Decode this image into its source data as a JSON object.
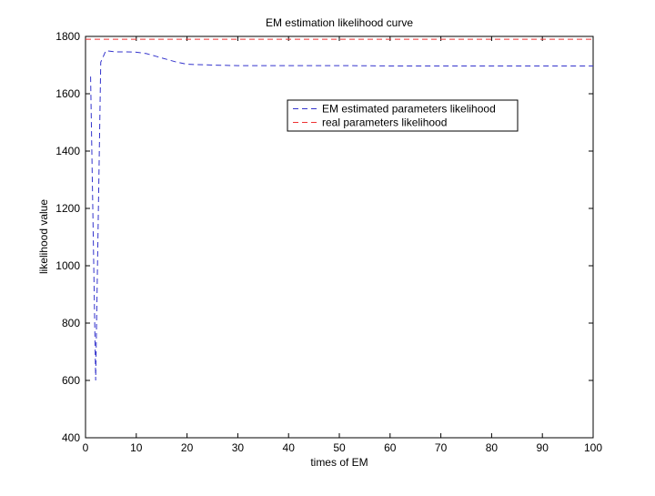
{
  "chart_data": {
    "type": "line",
    "title": "EM estimation likelihood curve",
    "xlabel": "times of EM",
    "ylabel": "likelihood value",
    "xlim": [
      0,
      100
    ],
    "ylim": [
      400,
      1800
    ],
    "xticks": [
      0,
      10,
      20,
      30,
      40,
      50,
      60,
      70,
      80,
      90,
      100
    ],
    "yticks": [
      400,
      600,
      800,
      1000,
      1200,
      1400,
      1600,
      1800
    ],
    "grid": false,
    "legend_position": "upper-right",
    "series": [
      {
        "name": "EM estimated parameters likelihood",
        "color": "#3333cc",
        "line_style": "dashed",
        "x": [
          1,
          2,
          3,
          4,
          5,
          6,
          8,
          10,
          12,
          14,
          16,
          18,
          20,
          25,
          30,
          40,
          50,
          52,
          60,
          70,
          80,
          90,
          100
        ],
        "y": [
          1660,
          600,
          1710,
          1750,
          1748,
          1746,
          1746,
          1745,
          1740,
          1730,
          1720,
          1710,
          1703,
          1700,
          1698,
          1698,
          1698,
          1698,
          1697,
          1697,
          1697,
          1697,
          1697
        ]
      },
      {
        "name": "real parameters likelihood",
        "color": "#ee3333",
        "line_style": "dashed",
        "x": [
          0,
          100
        ],
        "y": [
          1790,
          1790
        ]
      }
    ]
  }
}
